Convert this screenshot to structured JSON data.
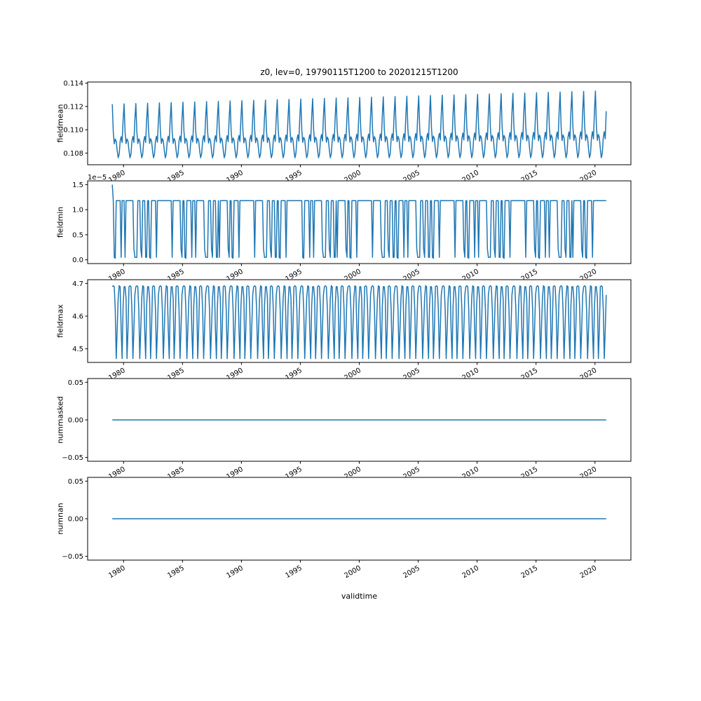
{
  "figure": {
    "title": "z0, lev=0, 19790115T1200 to 20201215T1200",
    "xlabel": "validtime",
    "line_color": "#1f77b4",
    "background_color": "#ffffff",
    "spine_color": "#000000"
  },
  "x_axis": {
    "label": "validtime",
    "xlim": [
      1976.95,
      2023.05
    ],
    "ticks": [
      1980,
      1985,
      1990,
      1995,
      2000,
      2005,
      2010,
      2015,
      2020
    ],
    "tick_labels": [
      "1980",
      "1985",
      "1990",
      "1995",
      "2000",
      "2005",
      "2010",
      "2015",
      "2020"
    ],
    "start_year": 1979,
    "end_year": 2020,
    "n_years": 42,
    "points_per_year": 12
  },
  "chart_data": [
    {
      "type": "line",
      "name": "fieldmean",
      "ylabel": "fieldmean",
      "ylim": [
        0.107,
        0.1141
      ],
      "yticks": [
        0.108,
        0.11,
        0.112,
        0.114
      ],
      "ytick_labels": [
        "0.108",
        "0.110",
        "0.112",
        "0.114"
      ],
      "series_mode": "seasonal_trend",
      "base": 0.1076,
      "amplitude_growth": 0.25,
      "monthly_profile": [
        0.1122,
        0.1098,
        0.1088,
        0.1092,
        0.109,
        0.1082,
        0.1076,
        0.1079,
        0.109,
        0.1094,
        0.1089,
        0.1108
      ]
    },
    {
      "type": "line",
      "name": "fieldmin",
      "ylabel": "fieldmin",
      "offset_text": "1e−5",
      "value_scale": 1e-05,
      "ylim": [
        -0.075,
        1.575
      ],
      "yticks": [
        0.0,
        0.5,
        1.0,
        1.5
      ],
      "ytick_labels": [
        "0.0",
        "0.5",
        "1.0",
        "1.5"
      ],
      "series_mode": "yearly_pattern",
      "first_value": 1.5,
      "year_pattern": "ABDACBABDBACBDACABDBACBDABDACB",
      "profiles": {
        "A": [
          1.18,
          1.18,
          0.05,
          0.03,
          1.18,
          1.18,
          1.18,
          1.18,
          1.18,
          0.05,
          1.18,
          1.18
        ],
        "B": [
          1.18,
          0.05,
          1.18,
          1.18,
          1.18,
          1.18,
          1.18,
          1.18,
          1.18,
          1.18,
          0.22,
          0.05
        ],
        "C": [
          1.18,
          1.18,
          1.18,
          1.18,
          1.18,
          1.18,
          1.18,
          1.18,
          1.18,
          1.18,
          1.18,
          1.18
        ],
        "D": [
          0.05,
          0.05,
          1.18,
          1.18,
          1.18,
          0.22,
          0.05,
          1.18,
          1.18,
          1.18,
          0.05,
          0.05
        ]
      }
    },
    {
      "type": "line",
      "name": "fieldmax",
      "ylabel": "fieldmax",
      "ylim": [
        4.4585,
        4.7115
      ],
      "yticks": [
        4.5,
        4.6,
        4.7
      ],
      "ytick_labels": [
        "4.5",
        "4.6",
        "4.7"
      ],
      "series_mode": "yearly_pattern",
      "year_pattern": "AB",
      "profiles": {
        "A": [
          4.69,
          4.693,
          4.69,
          4.62,
          4.47,
          4.56,
          4.655,
          4.693,
          4.69,
          4.56,
          4.47,
          4.63
        ],
        "B": [
          4.69,
          4.69,
          4.655,
          4.47,
          4.56,
          4.69,
          4.693,
          4.69,
          4.62,
          4.47,
          4.56,
          4.665
        ]
      }
    },
    {
      "type": "line",
      "name": "nummasked",
      "ylabel": "nummasked",
      "ylim": [
        -0.055,
        0.055
      ],
      "yticks": [
        -0.05,
        0.0,
        0.05
      ],
      "ytick_labels": [
        "−0.05",
        "0.00",
        "0.05"
      ],
      "series_mode": "constant",
      "value": 0.0
    },
    {
      "type": "line",
      "name": "numnan",
      "ylabel": "numnan",
      "ylim": [
        -0.055,
        0.055
      ],
      "yticks": [
        -0.05,
        0.0,
        0.05
      ],
      "ytick_labels": [
        "−0.05",
        "0.00",
        "0.05"
      ],
      "series_mode": "constant",
      "value": 0.0
    }
  ]
}
